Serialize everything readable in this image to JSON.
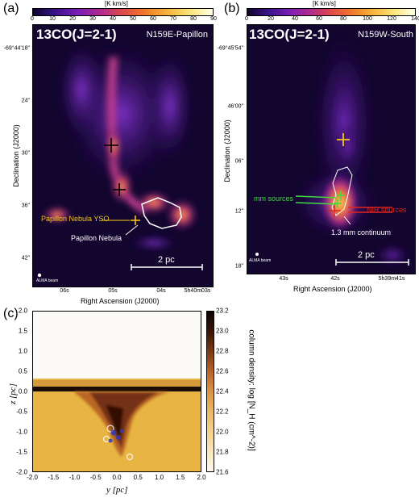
{
  "panel_a": {
    "letter": "(a)",
    "colorbar_unit": "[K km/s]",
    "colorbar_ticks": [
      "0",
      "10",
      "20",
      "30",
      "40",
      "50",
      "60",
      "70",
      "80",
      "90"
    ],
    "title": "13CO(J=2-1)",
    "region": "N159E-Papillon",
    "y_axis_label": "Declination (J2000)",
    "y_ticks": [
      "-69°44'18\"",
      "24\"",
      "30\"",
      "36\"",
      "42\""
    ],
    "x_axis_label": "Right Ascension (J2000)",
    "x_ticks": [
      "06s",
      "05s",
      "04s",
      "5h40m03s"
    ],
    "scale_bar": "2 pc",
    "beam_label": "ALMA beam",
    "annot_yso": "Papillon Nebula YSO",
    "annot_nebula": "Papillon Nebula"
  },
  "panel_b": {
    "letter": "(b)",
    "colorbar_unit": "[K km/s]",
    "colorbar_ticks": [
      "0",
      "20",
      "40",
      "60",
      "80",
      "100",
      "120",
      "140"
    ],
    "title": "13CO(J=2-1)",
    "region": "N159W-South",
    "y_axis_label": "Declination (J2000)",
    "y_ticks": [
      "-69°45'54\"",
      "46'00\"",
      "06\"",
      "12\"",
      "18\""
    ],
    "x_axis_label": "Right Ascension (J2000)",
    "x_ticks": [
      "43s",
      "42s",
      "5h39m41s"
    ],
    "scale_bar": "2 pc",
    "beam_label": "ALMA beam",
    "annot_mm": "mm sources",
    "annot_nir": "NIR sources",
    "annot_cont": "1.3 mm continuum"
  },
  "panel_c": {
    "letter": "(c)",
    "y_axis_label": "z [pc]",
    "x_axis_label": "y [pc]",
    "y_ticks": [
      "2.0",
      "1.5",
      "1.0",
      "0.5",
      "0.0",
      "-0.5",
      "-1.0",
      "-1.5",
      "-2.0"
    ],
    "x_ticks": [
      "-2.0",
      "-1.5",
      "-1.0",
      "-0.5",
      "0.0",
      "0.5",
      "1.0",
      "1.5",
      "2.0"
    ],
    "colorbar_ticks": [
      "23.2",
      "23.0",
      "22.8",
      "22.6",
      "22.4",
      "22.2",
      "22.0",
      "21.8",
      "21.6"
    ],
    "colorbar_label": "column density: log [N_H (cm^-2)]"
  },
  "colors": {
    "map_bg": "#12052e",
    "accent_yellow": "#f5c518",
    "mm_green": "#3ddc3d",
    "nir_red": "#e0241c"
  }
}
